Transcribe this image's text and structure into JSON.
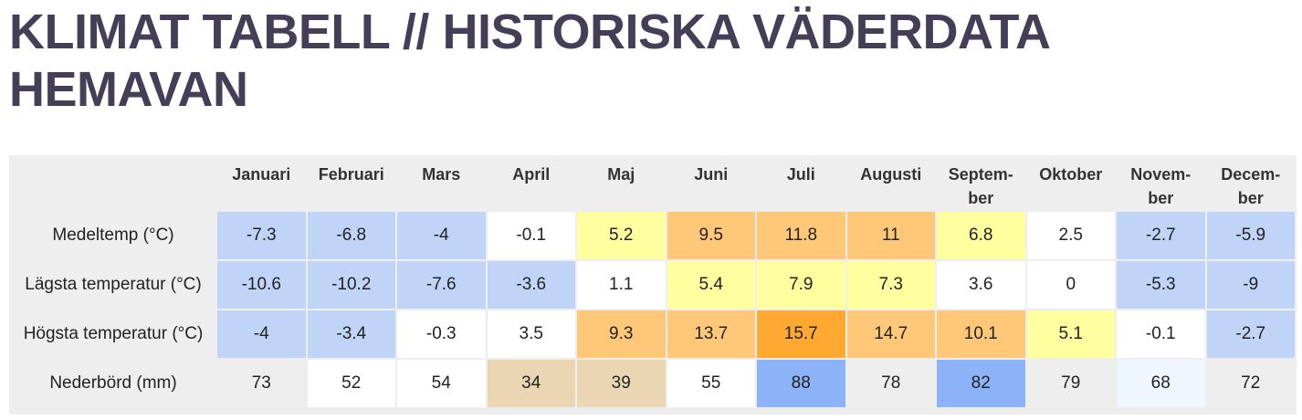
{
  "title": {
    "line1": "KLIMAT TABELL // HISTORISKA VÄDERDATA",
    "line2": "HEMAVAN"
  },
  "months": [
    {
      "line1": "Januari",
      "line2": ""
    },
    {
      "line1": "Februari",
      "line2": ""
    },
    {
      "line1": "Mars",
      "line2": ""
    },
    {
      "line1": "April",
      "line2": ""
    },
    {
      "line1": "Maj",
      "line2": ""
    },
    {
      "line1": "Juni",
      "line2": ""
    },
    {
      "line1": "Juli",
      "line2": ""
    },
    {
      "line1": "Augusti",
      "line2": ""
    },
    {
      "line1": "Septem-",
      "line2": "ber"
    },
    {
      "line1": "Oktober",
      "line2": ""
    },
    {
      "line1": "Novem-",
      "line2": "ber"
    },
    {
      "line1": "Decem-",
      "line2": "ber"
    }
  ],
  "rows": [
    {
      "label": "Medeltemp (°C)",
      "values": [
        "-7.3",
        "-6.8",
        "-4",
        "-0.1",
        "5.2",
        "9.5",
        "11.8",
        "11",
        "6.8",
        "2.5",
        "-2.7",
        "-5.9"
      ],
      "colors": [
        "#c0d4f7",
        "#c0d4f7",
        "#c0d4f7",
        "#ffffff",
        "#ffffa0",
        "#ffc878",
        "#ffc878",
        "#ffc878",
        "#ffffa0",
        "#ffffff",
        "#c0d4f7",
        "#c0d4f7"
      ]
    },
    {
      "label": "Lägsta temperatur (°C)",
      "values": [
        "-10.6",
        "-10.2",
        "-7.6",
        "-3.6",
        "1.1",
        "5.4",
        "7.9",
        "7.3",
        "3.6",
        "0",
        "-5.3",
        "-9"
      ],
      "colors": [
        "#c0d4f7",
        "#c0d4f7",
        "#c0d4f7",
        "#c0d4f7",
        "#ffffff",
        "#ffffa0",
        "#ffffa0",
        "#ffffa0",
        "#ffffff",
        "#ffffff",
        "#c0d4f7",
        "#c0d4f7"
      ]
    },
    {
      "label": "Högsta temperatur (°C)",
      "values": [
        "-4",
        "-3.4",
        "-0.3",
        "3.5",
        "9.3",
        "13.7",
        "15.7",
        "14.7",
        "10.1",
        "5.1",
        "-0.1",
        "-2.7"
      ],
      "colors": [
        "#c0d4f7",
        "#c0d4f7",
        "#ffffff",
        "#ffffff",
        "#ffc878",
        "#ffc878",
        "#ffa832",
        "#ffc878",
        "#ffc878",
        "#ffffa0",
        "#ffffff",
        "#c0d4f7"
      ]
    },
    {
      "label": "Nederbörd (mm)",
      "values": [
        "73",
        "52",
        "54",
        "34",
        "39",
        "55",
        "88",
        "78",
        "82",
        "79",
        "68",
        "72"
      ],
      "colors": [
        "#eeeeee",
        "#ffffff",
        "#ffffff",
        "#ebd6b4",
        "#ebd6b4",
        "#ffffff",
        "#8cb2f7",
        "#eeeeee",
        "#8cb2f7",
        "#eeeeee",
        "#f0f6ff",
        "#eeeeee"
      ]
    }
  ]
}
